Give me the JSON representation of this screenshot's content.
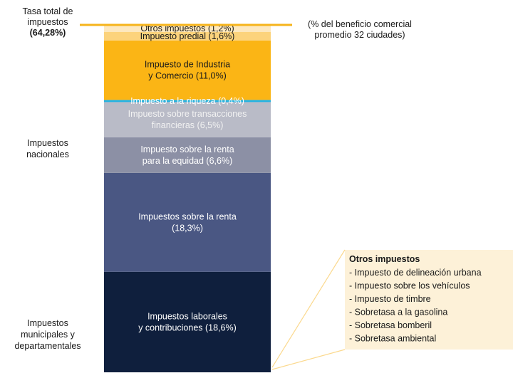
{
  "chart_data": {
    "type": "stacked-column",
    "total": 64.28,
    "total_label": [
      "Tasa total de",
      "impuestos"
    ],
    "total_value_label": "(64,28%)",
    "total_color": "#f6b41b",
    "note": [
      "(% del beneficio comercial",
      "promedio 32 ciudades)"
    ],
    "groups": [
      [
        "Impuestos",
        "nacionales"
      ],
      [
        "Impuestos",
        "municipales y",
        "departamentales"
      ]
    ],
    "categories": [
      [
        "Impuestos laborales",
        "y contribuciones"
      ],
      [
        "Impuestos sobre la renta",
        ""
      ],
      [
        "Impuesto sobre la renta",
        "para la equidad"
      ],
      [
        "Impuesto sobre transacciones",
        "financieras"
      ],
      [
        "Impuesto a la riqueza"
      ],
      [
        "Impuesto de Industria",
        "y Comercio"
      ],
      [
        "Impuesto predial"
      ],
      [
        "Otros impuestos"
      ]
    ],
    "values": [
      18.6,
      18.3,
      6.6,
      6.5,
      0.4,
      11.0,
      1.6,
      1.2
    ],
    "value_labels": [
      "(18,6%)",
      "(18,3%)",
      "(6,6%)",
      "(6,5%)",
      "(0,4%)",
      "(11,0%)",
      "(1,6%)",
      "(1,2%)"
    ],
    "colors": [
      "#0f1f3d",
      "#4a5783",
      "#8c90a5",
      "#b9bbc7",
      "#25b3e3",
      "#fbb515",
      "#fcd37c",
      "#fde8bf"
    ],
    "text_colors": [
      "#ffffff",
      "#ffffff",
      "#ffffff",
      "#f2f2f2",
      "#ffffff",
      "#1a1a1a",
      "#1a1a1a",
      "#1a1a1a"
    ],
    "ylim": [
      0,
      64.28
    ],
    "box": {
      "title": "Otros impuestos",
      "items": [
        "- Impuesto de delineación urbana",
        "- Impuesto sobre los vehículos",
        "- Impuesto de timbre",
        "- Sobretasa a la gasolina",
        "- Sobretasa bomberil",
        "- Sobretasa ambiental"
      ]
    }
  }
}
